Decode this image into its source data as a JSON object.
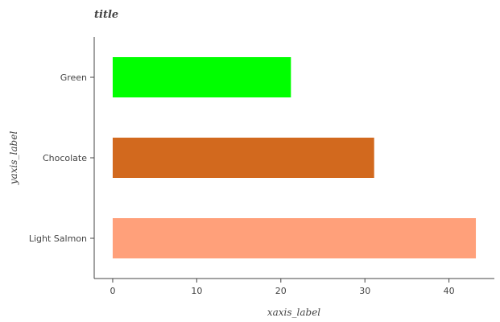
{
  "chart_data": {
    "type": "bar",
    "orientation": "horizontal",
    "title": "title",
    "xlabel": "xaxis_label",
    "ylabel": "yaxis_label",
    "categories": [
      "Light Salmon",
      "Chocolate",
      "Green"
    ],
    "values": [
      43.2,
      31.1,
      21.2
    ],
    "colors": [
      "#ffa07a",
      "#d2691e",
      "#00ff00"
    ],
    "xlim": [
      -2.2,
      45.4
    ],
    "xticks": [
      0,
      10,
      20,
      30,
      40
    ],
    "grid": false,
    "legend": "none"
  }
}
